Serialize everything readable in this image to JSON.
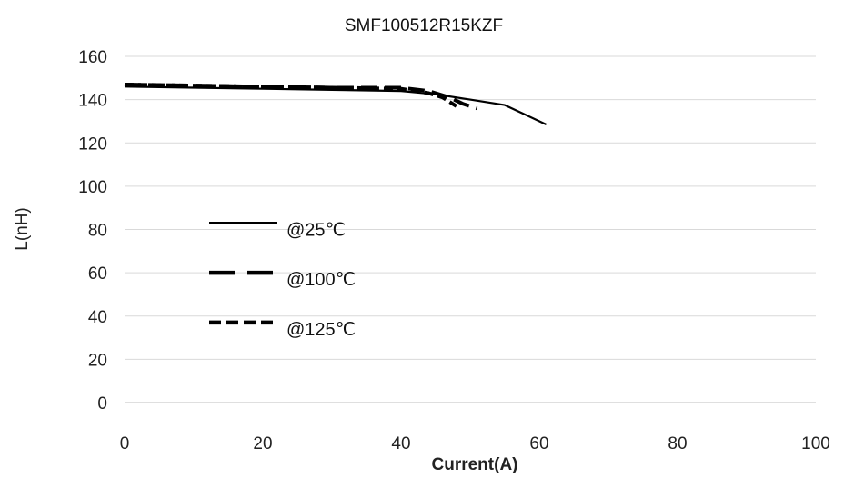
{
  "chart_data": {
    "type": "line",
    "title": "SMF100512R15KZF",
    "xlabel": "Current(A)",
    "ylabel": "L(nH)",
    "xlim": [
      0,
      100
    ],
    "ylim": [
      0,
      160
    ],
    "x_ticks": [
      0,
      20,
      40,
      60,
      80,
      100
    ],
    "y_ticks": [
      0,
      20,
      40,
      60,
      80,
      100,
      120,
      140,
      160
    ],
    "grid": "horizontal",
    "legend_position": "center-left",
    "series": [
      {
        "name": "@25℃",
        "style": "solid",
        "color": "#000000",
        "points": [
          [
            0,
            146
          ],
          [
            10,
            145.5
          ],
          [
            20,
            145
          ],
          [
            30,
            144.5
          ],
          [
            40,
            144
          ],
          [
            45,
            142.5
          ],
          [
            50,
            140
          ],
          [
            55,
            137.5
          ],
          [
            58,
            133
          ],
          [
            61,
            128.5
          ]
        ]
      },
      {
        "name": "@100℃",
        "style": "long-dash",
        "color": "#000000",
        "points": [
          [
            0,
            147
          ],
          [
            10,
            146.5
          ],
          [
            20,
            146
          ],
          [
            30,
            145.5
          ],
          [
            40,
            145.5
          ],
          [
            44,
            144
          ],
          [
            47,
            141
          ],
          [
            49,
            138
          ],
          [
            51,
            136
          ]
        ]
      },
      {
        "name": "@125℃",
        "style": "short-dash",
        "color": "#000000",
        "points": [
          [
            0,
            147
          ],
          [
            10,
            146.5
          ],
          [
            20,
            146
          ],
          [
            30,
            145.5
          ],
          [
            40,
            145
          ],
          [
            44,
            143
          ],
          [
            46,
            141
          ],
          [
            48,
            137
          ]
        ]
      }
    ]
  }
}
